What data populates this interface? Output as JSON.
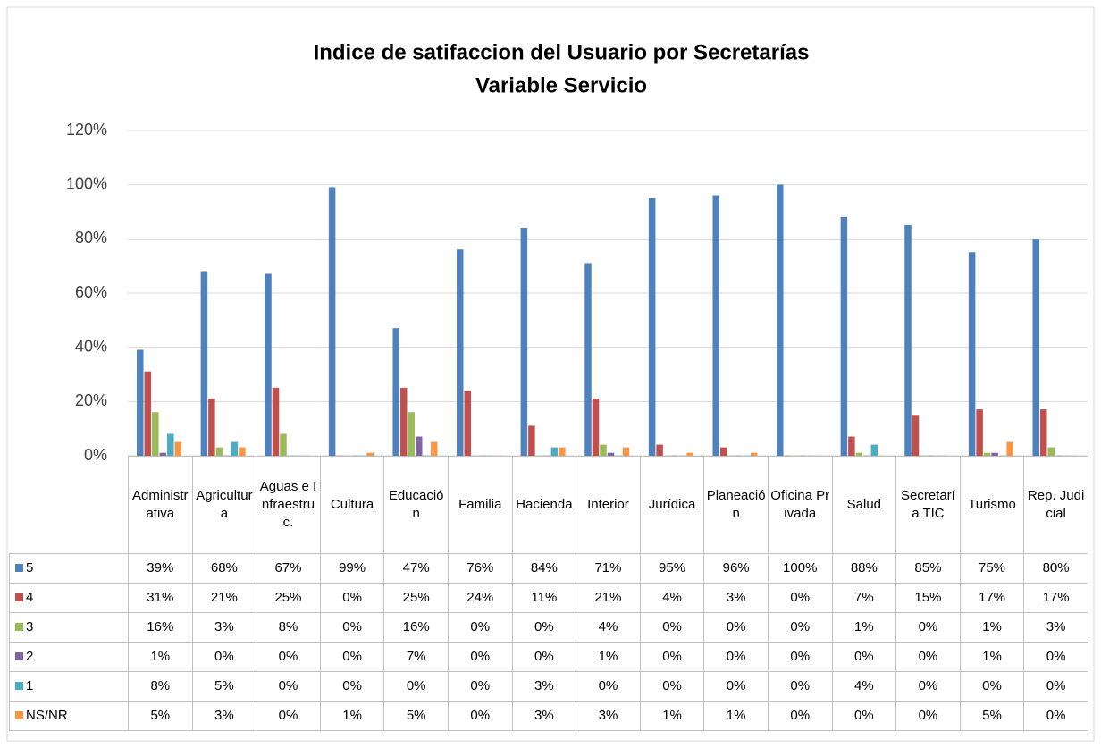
{
  "chart_data": {
    "type": "bar",
    "title": "Indice de satifaccion del Usuario por Secretarías",
    "subtitle": "Variable Servicio",
    "categories": [
      "Administrativa",
      "Agricultura",
      "Aguas e Infraestruc.",
      "Cultura",
      "Educación",
      "Familia",
      "Hacienda",
      "Interior",
      "Jurídica",
      "Planeación",
      "Oficina Privada",
      "Salud",
      "Secretaría TIC",
      "Turismo",
      "Rep. Judicial"
    ],
    "series": [
      {
        "name": "5",
        "color": "#4f81bd",
        "values": [
          39,
          68,
          67,
          99,
          47,
          76,
          84,
          71,
          95,
          96,
          100,
          88,
          85,
          75,
          80
        ],
        "value_labels": [
          "39%",
          "68%",
          "67%",
          "99%",
          "47%",
          "76%",
          "84%",
          "71%",
          "95%",
          "96%",
          "100%",
          "88%",
          "85%",
          "75%",
          "80%"
        ]
      },
      {
        "name": "4",
        "color": "#c0504d",
        "values": [
          31,
          21,
          25,
          0,
          25,
          24,
          11,
          21,
          4,
          3,
          0,
          7,
          15,
          17,
          17
        ],
        "value_labels": [
          "31%",
          "21%",
          "25%",
          "0%",
          "25%",
          "24%",
          "11%",
          "21%",
          "4%",
          "3%",
          "0%",
          "7%",
          "15%",
          "17%",
          "17%"
        ]
      },
      {
        "name": "3",
        "color": "#9bbb59",
        "values": [
          16,
          3,
          8,
          0,
          16,
          0,
          0,
          4,
          0,
          0,
          0,
          1,
          0,
          1,
          3
        ],
        "value_labels": [
          "16%",
          "3%",
          "8%",
          "0%",
          "16%",
          "0%",
          "0%",
          "4%",
          "0%",
          "0%",
          "0%",
          "1%",
          "0%",
          "1%",
          "3%"
        ]
      },
      {
        "name": "2",
        "color": "#8064a2",
        "values": [
          1,
          0,
          0,
          0,
          7,
          0,
          0,
          1,
          0,
          0,
          0,
          0,
          0,
          1,
          0
        ],
        "value_labels": [
          "1%",
          "0%",
          "0%",
          "0%",
          "7%",
          "0%",
          "0%",
          "1%",
          "0%",
          "0%",
          "0%",
          "0%",
          "0%",
          "1%",
          "0%"
        ]
      },
      {
        "name": "1",
        "color": "#4bacc6",
        "values": [
          8,
          5,
          0,
          0,
          0,
          0,
          3,
          0,
          0,
          0,
          0,
          4,
          0,
          0,
          0
        ],
        "value_labels": [
          "8%",
          "5%",
          "0%",
          "0%",
          "0%",
          "0%",
          "3%",
          "0%",
          "0%",
          "0%",
          "0%",
          "4%",
          "0%",
          "0%",
          "0%"
        ]
      },
      {
        "name": "NS/NR",
        "color": "#f79646",
        "values": [
          5,
          3,
          0,
          1,
          5,
          0,
          3,
          3,
          1,
          1,
          0,
          0,
          0,
          5,
          0
        ],
        "value_labels": [
          "5%",
          "3%",
          "0%",
          "1%",
          "5%",
          "0%",
          "3%",
          "3%",
          "1%",
          "1%",
          "0%",
          "0%",
          "0%",
          "5%",
          "0%"
        ]
      }
    ],
    "ylim": [
      0,
      120
    ],
    "yticks": [
      {
        "value": 0,
        "label": "0%"
      },
      {
        "value": 20,
        "label": "20%"
      },
      {
        "value": 40,
        "label": "40%"
      },
      {
        "value": 60,
        "label": "60%"
      },
      {
        "value": 80,
        "label": "80%"
      },
      {
        "value": 100,
        "label": "100%"
      },
      {
        "value": 120,
        "label": "120%"
      }
    ],
    "grid": true
  }
}
